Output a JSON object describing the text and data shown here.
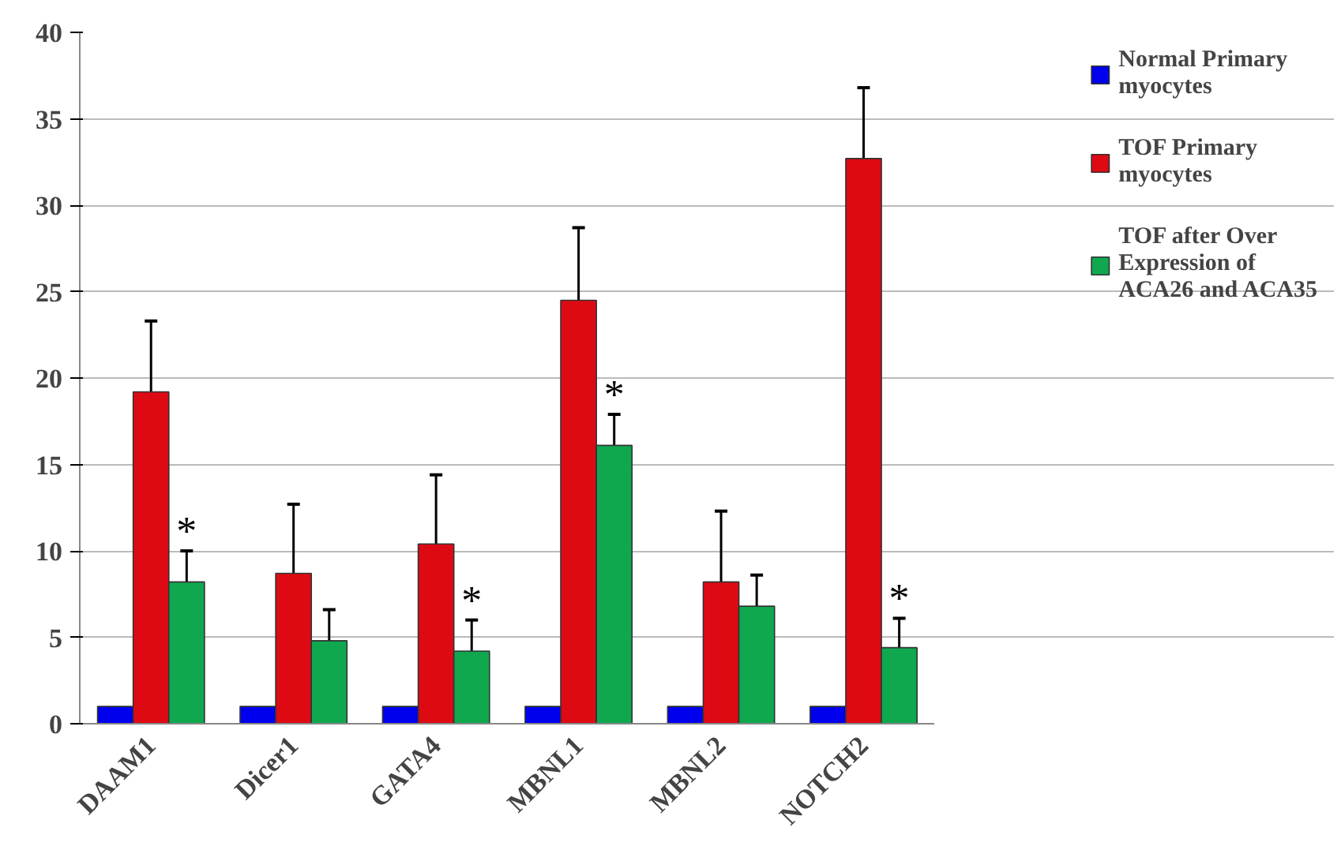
{
  "chart_data": {
    "type": "bar",
    "categories": [
      "DAAM1",
      "Dicer1",
      "GATA4",
      "MBNL1",
      "MBNL2",
      "NOTCH2"
    ],
    "series": [
      {
        "name": "Normal Primary myocytes",
        "color": "#0000ee",
        "values": [
          1.0,
          1.0,
          1.0,
          1.0,
          1.0,
          1.0
        ]
      },
      {
        "name": "TOF Primary myocytes",
        "color": "#dd0a14",
        "values": [
          19.2,
          8.7,
          10.4,
          24.5,
          8.2,
          32.7
        ],
        "errors": [
          4.1,
          4.0,
          4.0,
          4.2,
          4.1,
          4.1
        ]
      },
      {
        "name": "TOF after Over Expression of ACA26 and ACA35",
        "color": "#0fa84f",
        "values": [
          8.2,
          4.8,
          4.2,
          16.1,
          6.8,
          4.4
        ],
        "errors": [
          1.8,
          1.8,
          1.8,
          1.8,
          1.8,
          1.7
        ],
        "value_labels": [
          "*",
          null,
          "*",
          "*",
          null,
          "*"
        ]
      }
    ],
    "ylim": [
      0,
      40
    ],
    "yticks": [
      0,
      5,
      10,
      15,
      20,
      25,
      30,
      35,
      40
    ],
    "grid": "y",
    "legend": "right"
  }
}
